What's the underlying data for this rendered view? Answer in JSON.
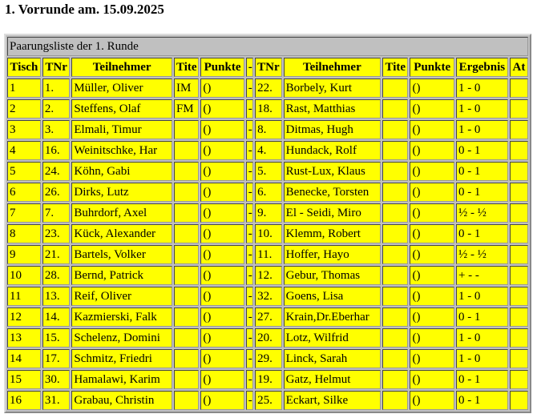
{
  "header": {
    "title": "1. Vorrunde am. 15.09.2025"
  },
  "table": {
    "caption": "Paarungsliste der 1. Runde",
    "columns": [
      "Tisch",
      "TNr",
      "Teilnehmer",
      "Tite",
      "Punkte",
      "-",
      "TNr",
      "Teilnehmer",
      "Tite",
      "Punkte",
      "Ergebnis",
      "At"
    ],
    "rows": [
      [
        "1",
        "1.",
        "Müller, Oliver",
        "IM",
        "()",
        "-",
        "22.",
        "Borbely, Kurt",
        null,
        "()",
        "1 - 0",
        null
      ],
      [
        "2",
        "2.",
        "Steffens, Olaf",
        "FM",
        "()",
        "-",
        "18.",
        "Rast, Matthias",
        null,
        "()",
        "1 - 0",
        null
      ],
      [
        "3",
        "3.",
        "Elmali, Timur",
        null,
        "()",
        "-",
        "8.",
        "Ditmas, Hugh",
        null,
        "()",
        "1 - 0",
        null
      ],
      [
        "4",
        "16.",
        "Weinitschke, Har",
        null,
        "()",
        "-",
        "4.",
        "Hundack, Rolf",
        null,
        "()",
        "0 - 1",
        null
      ],
      [
        "5",
        "24.",
        "Köhn, Gabi",
        null,
        "()",
        "-",
        "5.",
        "Rust-Lux, Klaus",
        null,
        "()",
        "0 - 1",
        null
      ],
      [
        "6",
        "26.",
        "Dirks, Lutz",
        null,
        "()",
        "-",
        "6.",
        "Benecke, Torsten",
        null,
        "()",
        "0 - 1",
        null
      ],
      [
        "7",
        "7.",
        "Buhrdorf, Axel",
        null,
        "()",
        "-",
        "9.",
        "El - Seidi, Miro",
        null,
        "()",
        "½ - ½",
        null
      ],
      [
        "8",
        "23.",
        "Kück, Alexander",
        null,
        "()",
        "-",
        "10.",
        "Klemm, Robert",
        null,
        "()",
        "0 - 1",
        null
      ],
      [
        "9",
        "21.",
        "Bartels, Volker",
        null,
        "()",
        "-",
        "11.",
        "Hoffer, Hayo",
        null,
        "()",
        "½ - ½",
        null
      ],
      [
        "10",
        "28.",
        "Bernd, Patrick",
        null,
        "()",
        "-",
        "12.",
        "Gebur, Thomas",
        null,
        "()",
        "+ - -",
        null
      ],
      [
        "11",
        "13.",
        "Reif, Oliver",
        null,
        "()",
        "-",
        "32.",
        "Goens, Lisa",
        null,
        "()",
        "1 - 0",
        null
      ],
      [
        "12",
        "14.",
        "Kazmierski, Falk",
        null,
        "()",
        "-",
        "27.",
        "Krain,Dr.Eberhar",
        null,
        "()",
        "0 - 1",
        null
      ],
      [
        "13",
        "15.",
        "Schelenz, Domini",
        null,
        "()",
        "-",
        "20.",
        "Lotz, Wilfrid",
        null,
        "()",
        "1 - 0",
        null
      ],
      [
        "14",
        "17.",
        "Schmitz, Friedri",
        null,
        "()",
        "-",
        "29.",
        "Linck, Sarah",
        null,
        "()",
        "1 - 0",
        null
      ],
      [
        "15",
        "30.",
        "Hamalawi, Karim",
        null,
        "()",
        "-",
        "19.",
        "Gatz, Helmut",
        null,
        "()",
        "0 - 1",
        null
      ],
      [
        "16",
        "31.",
        "Grabau, Christin",
        null,
        "()",
        "-",
        "25.",
        "Eckart, Silke",
        null,
        "()",
        "0 - 1",
        null
      ]
    ]
  }
}
